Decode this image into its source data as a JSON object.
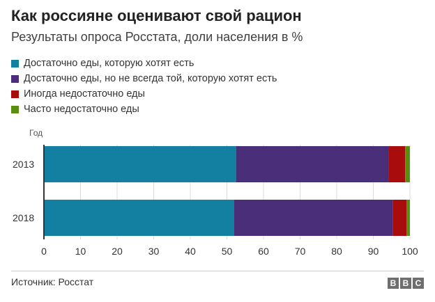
{
  "header": {
    "title": "Как россияне оценивают свой рацион",
    "subtitle": "Результаты опроса Росстата, доли населения в %"
  },
  "chart_data": {
    "type": "bar",
    "orientation": "horizontal",
    "stacked": true,
    "categories": [
      "2013",
      "2018"
    ],
    "series": [
      {
        "name": "Достаточно еды, которую хотят есть",
        "color": "#1380a1",
        "values": [
          52.5,
          52.0
        ]
      },
      {
        "name": "Достаточно еды, но не всегда той, которую хотят есть",
        "color": "#4a2e7a",
        "values": [
          41.7,
          43.4
        ]
      },
      {
        "name": "Иногда недостаточно еды",
        "color": "#a80c0c",
        "values": [
          4.5,
          3.7
        ]
      },
      {
        "name": "Часто недостаточно еды",
        "color": "#5a8e10",
        "values": [
          1.3,
          0.9
        ]
      }
    ],
    "ylabel": "Год",
    "xlim": [
      0,
      100
    ],
    "xticks": [
      0,
      10,
      20,
      30,
      40,
      50,
      60,
      70,
      80,
      90,
      100
    ],
    "grid": true,
    "legend_position": "top-left"
  },
  "footer": {
    "source": "Источник: Росстат",
    "logo": [
      "B",
      "B",
      "C"
    ]
  }
}
